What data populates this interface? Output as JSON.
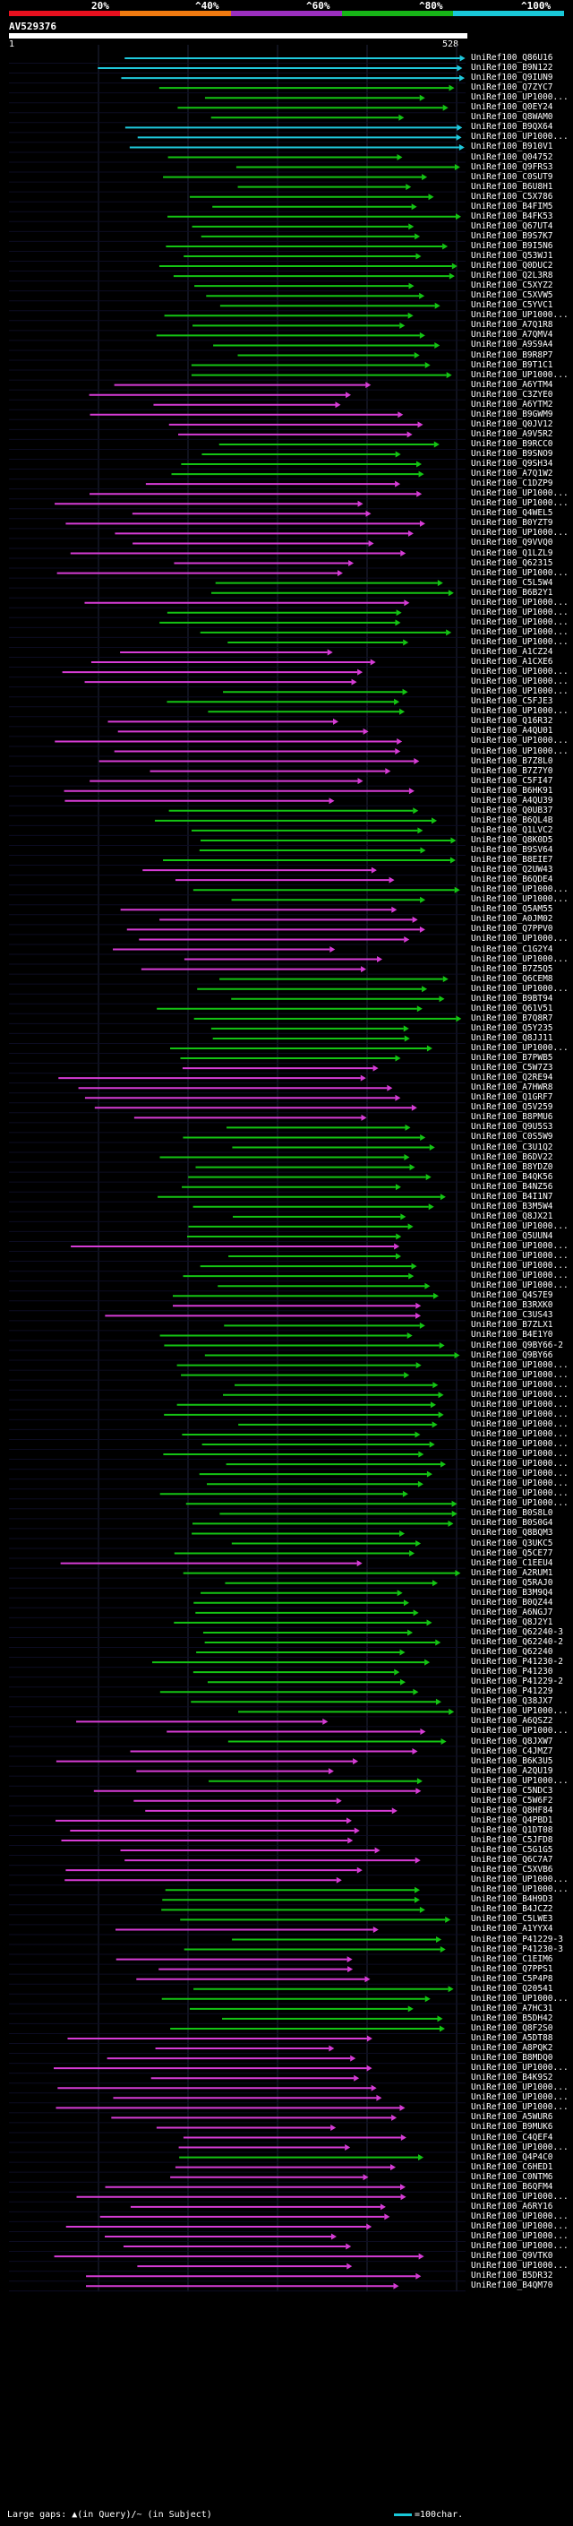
{
  "scale": {
    "labels": [
      "20%",
      "^40%",
      "^60%",
      "^80%",
      "^100%"
    ],
    "colors": [
      "#e8101e",
      "#f07a10",
      "#9b2fbf",
      "#17b517",
      "#19c8d8"
    ]
  },
  "query": {
    "id": "AV529376",
    "start": "1",
    "end": "528"
  },
  "legend": {
    "text": "Large gaps: ▲(in Query)/~ (in Subject)",
    "scale": "=100char."
  },
  "hits": [
    {
      "label": "UniRef100_Q86U16",
      "color": "cyan"
    },
    {
      "label": "UniRef100_B9N122",
      "color": "cyan"
    },
    {
      "label": "UniRef100_Q9IUN9",
      "color": "cyan"
    },
    {
      "label": "UniRef100_Q7ZYC7",
      "color": "green"
    },
    {
      "label": "UniRef100_UP1000...",
      "color": "green"
    },
    {
      "label": "UniRef100_Q0EY24",
      "color": "green"
    },
    {
      "label": "UniRef100_Q8WAM0",
      "color": "green"
    },
    {
      "label": "UniRef100_B9QX64",
      "color": "cyan"
    },
    {
      "label": "UniRef100_UP1000...",
      "color": "cyan"
    },
    {
      "label": "UniRef100_B910V1",
      "color": "cyan"
    },
    {
      "label": "UniRef100_Q04752",
      "color": "green"
    },
    {
      "label": "UniRef100_Q9FRS3",
      "color": "green"
    },
    {
      "label": "UniRef100_C0SUT9",
      "color": "green"
    },
    {
      "label": "UniRef100_B6U8H1",
      "color": "green"
    },
    {
      "label": "UniRef100_C5X786",
      "color": "green"
    },
    {
      "label": "UniRef100_B4FIM5",
      "color": "green"
    },
    {
      "label": "UniRef100_B4FK53",
      "color": "green"
    },
    {
      "label": "UniRef100_Q67UT4",
      "color": "green"
    },
    {
      "label": "UniRef100_B9S7K7",
      "color": "green"
    },
    {
      "label": "UniRef100_B9I5N6",
      "color": "green"
    },
    {
      "label": "UniRef100_Q53WJ1",
      "color": "green"
    },
    {
      "label": "UniRef100_Q0DUC2",
      "color": "green"
    },
    {
      "label": "UniRef100_Q2L3R8",
      "color": "green"
    },
    {
      "label": "UniRef100_C5XYZ2",
      "color": "green"
    },
    {
      "label": "UniRef100_C5XVW5",
      "color": "green"
    },
    {
      "label": "UniRef100_C5YVC1",
      "color": "green"
    },
    {
      "label": "UniRef100_UP1000...",
      "color": "green"
    },
    {
      "label": "UniRef100_A7Q1R8",
      "color": "green"
    },
    {
      "label": "UniRef100_A7QMV4",
      "color": "green"
    },
    {
      "label": "UniRef100_A9S9A4",
      "color": "green"
    },
    {
      "label": "UniRef100_B9R8P7",
      "color": "green"
    },
    {
      "label": "UniRef100_B9T1C1",
      "color": "green"
    },
    {
      "label": "UniRef100_UP1000...",
      "color": "green"
    },
    {
      "label": "UniRef100_A6YTM4",
      "color": "magenta"
    },
    {
      "label": "UniRef100_C3ZYE0",
      "color": "magenta"
    },
    {
      "label": "UniRef100_A6YTM2",
      "color": "magenta"
    },
    {
      "label": "UniRef100_B9GWM9",
      "color": "magenta"
    },
    {
      "label": "UniRef100_Q0JV12",
      "color": "magenta"
    },
    {
      "label": "UniRef100_A9V5R2",
      "color": "magenta"
    },
    {
      "label": "UniRef100_B9RCC0",
      "color": "green"
    },
    {
      "label": "UniRef100_B9SNO9",
      "color": "green"
    },
    {
      "label": "UniRef100_Q9SH34",
      "color": "green"
    },
    {
      "label": "UniRef100_A7Q1W2",
      "color": "green"
    },
    {
      "label": "UniRef100_C1DZP9",
      "color": "magenta"
    },
    {
      "label": "UniRef100_UP1000...",
      "color": "magenta"
    },
    {
      "label": "UniRef100_UP1000...",
      "color": "magenta"
    },
    {
      "label": "UniRef100_Q4WEL5",
      "color": "magenta"
    },
    {
      "label": "UniRef100_B0YZT9",
      "color": "magenta"
    },
    {
      "label": "UniRef100_UP1000...",
      "color": "magenta"
    },
    {
      "label": "UniRef100_Q9VVQ0",
      "color": "magenta"
    },
    {
      "label": "UniRef100_Q1LZL9",
      "color": "magenta"
    },
    {
      "label": "UniRef100_Q62315",
      "color": "magenta"
    },
    {
      "label": "UniRef100_UP1000...",
      "color": "magenta"
    },
    {
      "label": "UniRef100_C5L5W4",
      "color": "green"
    },
    {
      "label": "UniRef100_B6B2Y1",
      "color": "green"
    },
    {
      "label": "UniRef100_UP1000...",
      "color": "magenta"
    },
    {
      "label": "UniRef100_UP1000...",
      "color": "green"
    },
    {
      "label": "UniRef100_UP1000...",
      "color": "green"
    },
    {
      "label": "UniRef100_UP1000...",
      "color": "green"
    },
    {
      "label": "UniRef100_UP1000...",
      "color": "green"
    },
    {
      "label": "UniRef100_A1CZ24",
      "color": "magenta"
    },
    {
      "label": "UniRef100_A1CXE6",
      "color": "magenta"
    },
    {
      "label": "UniRef100_UP1000...",
      "color": "magenta"
    },
    {
      "label": "UniRef100_UP1000...",
      "color": "magenta"
    },
    {
      "label": "UniRef100_UP1000...",
      "color": "green"
    },
    {
      "label": "UniRef100_C5FJE3",
      "color": "green"
    },
    {
      "label": "UniRef100_UP1000...",
      "color": "green"
    },
    {
      "label": "UniRef100_Q16R32",
      "color": "magenta"
    },
    {
      "label": "UniRef100_A4QU01",
      "color": "magenta"
    },
    {
      "label": "UniRef100_UP1000...",
      "color": "magenta"
    },
    {
      "label": "UniRef100_UP1000...",
      "color": "magenta"
    },
    {
      "label": "UniRef100_B7Z8L0",
      "color": "magenta"
    },
    {
      "label": "UniRef100_B7Z7Y0",
      "color": "magenta"
    },
    {
      "label": "UniRef100_C5FI47",
      "color": "magenta"
    },
    {
      "label": "UniRef100_B6HK91",
      "color": "magenta"
    },
    {
      "label": "UniRef100_A4QU39",
      "color": "magenta"
    },
    {
      "label": "UniRef100_Q0UB37",
      "color": "green"
    },
    {
      "label": "UniRef100_B6QL4B",
      "color": "green"
    },
    {
      "label": "UniRef100_Q1LVC2",
      "color": "green"
    },
    {
      "label": "UniRef100_Q8K0D5",
      "color": "green"
    },
    {
      "label": "UniRef100_B9SV64",
      "color": "green"
    },
    {
      "label": "UniRef100_B8EIE7",
      "color": "green"
    },
    {
      "label": "UniRef100_Q2UW43",
      "color": "magenta"
    },
    {
      "label": "UniRef100_B6QDE4",
      "color": "magenta"
    },
    {
      "label": "UniRef100_UP1000...",
      "color": "green"
    },
    {
      "label": "UniRef100_UP1000...",
      "color": "green"
    },
    {
      "label": "UniRef100_Q5AM55",
      "color": "magenta"
    },
    {
      "label": "UniRef100_A0JM02",
      "color": "magenta"
    },
    {
      "label": "UniRef100_Q7PPV0",
      "color": "magenta"
    },
    {
      "label": "UniRef100_UP1000...",
      "color": "magenta"
    },
    {
      "label": "UniRef100_C1G2Y4",
      "color": "magenta"
    },
    {
      "label": "UniRef100_UP1000...",
      "color": "magenta"
    },
    {
      "label": "UniRef100_B7Z5Q5",
      "color": "magenta"
    },
    {
      "label": "UniRef100_Q6CEM8",
      "color": "green"
    },
    {
      "label": "UniRef100_UP1000...",
      "color": "green"
    },
    {
      "label": "UniRef100_B9BT94",
      "color": "green"
    },
    {
      "label": "UniRef100_Q61V51",
      "color": "green"
    },
    {
      "label": "UniRef100_B7Q8R7",
      "color": "green"
    },
    {
      "label": "UniRef100_Q5Y235",
      "color": "green"
    },
    {
      "label": "UniRef100_Q8JJ11",
      "color": "green"
    },
    {
      "label": "UniRef100_UP1000...",
      "color": "green"
    },
    {
      "label": "UniRef100_B7PWB5",
      "color": "green"
    },
    {
      "label": "UniRef100_C5W7Z3",
      "color": "magenta"
    },
    {
      "label": "UniRef100_Q2RE94",
      "color": "magenta"
    },
    {
      "label": "UniRef100_A7HWR8",
      "color": "magenta"
    },
    {
      "label": "UniRef100_Q1GRF7",
      "color": "magenta"
    },
    {
      "label": "UniRef100_Q5V259",
      "color": "magenta"
    },
    {
      "label": "UniRef100_B8PMU6",
      "color": "magenta"
    },
    {
      "label": "UniRef100_Q9U5S3",
      "color": "green"
    },
    {
      "label": "UniRef100_C0S5W9",
      "color": "green"
    },
    {
      "label": "UniRef100_C3U1Q2",
      "color": "green"
    },
    {
      "label": "UniRef100_B6DV22",
      "color": "green"
    },
    {
      "label": "UniRef100_B8YDZ0",
      "color": "green"
    },
    {
      "label": "UniRef100_B4QK56",
      "color": "green"
    },
    {
      "label": "UniRef100_B4NZ56",
      "color": "green"
    },
    {
      "label": "UniRef100_B4I1N7",
      "color": "green"
    },
    {
      "label": "UniRef100_B3M5W4",
      "color": "green"
    },
    {
      "label": "UniRef100_Q8JX21",
      "color": "green"
    },
    {
      "label": "UniRef100_UP1000...",
      "color": "green"
    },
    {
      "label": "UniRef100_Q5UUN4",
      "color": "green"
    },
    {
      "label": "UniRef100_UP1000...",
      "color": "magenta"
    },
    {
      "label": "UniRef100_UP1000...",
      "color": "green"
    },
    {
      "label": "UniRef100_UP1000...",
      "color": "green"
    },
    {
      "label": "UniRef100_UP1000...",
      "color": "green"
    },
    {
      "label": "UniRef100_UP1000...",
      "color": "green"
    },
    {
      "label": "UniRef100_Q4S7E9",
      "color": "green"
    },
    {
      "label": "UniRef100_B3RXK0",
      "color": "magenta"
    },
    {
      "label": "UniRef100_C3US43",
      "color": "magenta"
    },
    {
      "label": "UniRef100_B7ZLX1",
      "color": "green"
    },
    {
      "label": "UniRef100_B4E1Y0",
      "color": "green"
    },
    {
      "label": "UniRef100_Q9BY66-2",
      "color": "green"
    },
    {
      "label": "UniRef100_Q9BY66",
      "color": "green"
    },
    {
      "label": "UniRef100_UP1000...",
      "color": "green"
    },
    {
      "label": "UniRef100_UP1000...",
      "color": "green"
    },
    {
      "label": "UniRef100_UP1000...",
      "color": "green"
    },
    {
      "label": "UniRef100_UP1000...",
      "color": "green"
    },
    {
      "label": "UniRef100_UP1000...",
      "color": "green"
    },
    {
      "label": "UniRef100_UP1000...",
      "color": "green"
    },
    {
      "label": "UniRef100_UP1000...",
      "color": "green"
    },
    {
      "label": "UniRef100_UP1000...",
      "color": "green"
    },
    {
      "label": "UniRef100_UP1000...",
      "color": "green"
    },
    {
      "label": "UniRef100_UP1000...",
      "color": "green"
    },
    {
      "label": "UniRef100_UP1000...",
      "color": "green"
    },
    {
      "label": "UniRef100_UP1000...",
      "color": "green"
    },
    {
      "label": "UniRef100_UP1000...",
      "color": "green"
    },
    {
      "label": "UniRef100_UP1000...",
      "color": "green"
    },
    {
      "label": "UniRef100_UP1000...",
      "color": "green"
    },
    {
      "label": "UniRef100_B0S8L0",
      "color": "green"
    },
    {
      "label": "UniRef100_B0S0G4",
      "color": "green"
    },
    {
      "label": "UniRef100_Q8BQM3",
      "color": "green"
    },
    {
      "label": "UniRef100_Q3UKC5",
      "color": "green"
    },
    {
      "label": "UniRef100_Q5CE77",
      "color": "green"
    },
    {
      "label": "UniRef100_C1EEU4",
      "color": "magenta"
    },
    {
      "label": "UniRef100_A2RUM1",
      "color": "green"
    },
    {
      "label": "UniRef100_Q5RAJ0",
      "color": "green"
    },
    {
      "label": "UniRef100_B3M9Q4",
      "color": "green"
    },
    {
      "label": "UniRef100_B0QZ44",
      "color": "green"
    },
    {
      "label": "UniRef100_A6NGJ7",
      "color": "green"
    },
    {
      "label": "UniRef100_Q8J2Y1",
      "color": "green"
    },
    {
      "label": "UniRef100_Q62240-3",
      "color": "green"
    },
    {
      "label": "UniRef100_Q62240-2",
      "color": "green"
    },
    {
      "label": "UniRef100_Q62240",
      "color": "green"
    },
    {
      "label": "UniRef100_P41230-2",
      "color": "green"
    },
    {
      "label": "UniRef100_P41230",
      "color": "green"
    },
    {
      "label": "UniRef100_P41229-2",
      "color": "green"
    },
    {
      "label": "UniRef100_P41229",
      "color": "green"
    },
    {
      "label": "UniRef100_Q38JX7",
      "color": "green"
    },
    {
      "label": "UniRef100_UP1000...",
      "color": "green"
    },
    {
      "label": "UniRef100_A6QSZ2",
      "color": "magenta"
    },
    {
      "label": "UniRef100_UP1000...",
      "color": "magenta"
    },
    {
      "label": "UniRef100_Q8JXW7",
      "color": "green"
    },
    {
      "label": "UniRef100_C4JMZ7",
      "color": "magenta"
    },
    {
      "label": "UniRef100_B6K3U5",
      "color": "magenta"
    },
    {
      "label": "UniRef100_A2QU19",
      "color": "magenta"
    },
    {
      "label": "UniRef100_UP1000...",
      "color": "green"
    },
    {
      "label": "UniRef100_C5NDC3",
      "color": "magenta"
    },
    {
      "label": "UniRef100_C5W6F2",
      "color": "magenta"
    },
    {
      "label": "UniRef100_Q8HF84",
      "color": "magenta"
    },
    {
      "label": "UniRef100_Q4PBD1",
      "color": "magenta"
    },
    {
      "label": "UniRef100_Q1DT08",
      "color": "magenta"
    },
    {
      "label": "UniRef100_C5JFD8",
      "color": "magenta"
    },
    {
      "label": "UniRef100_C5G1G5",
      "color": "magenta"
    },
    {
      "label": "UniRef100_Q6C7A7",
      "color": "magenta"
    },
    {
      "label": "UniRef100_C5XVB6",
      "color": "magenta"
    },
    {
      "label": "UniRef100_UP1000...",
      "color": "magenta"
    },
    {
      "label": "UniRef100_UP1000...",
      "color": "green"
    },
    {
      "label": "UniRef100_B4H9D3",
      "color": "green"
    },
    {
      "label": "UniRef100_B4JCZ2",
      "color": "green"
    },
    {
      "label": "UniRef100_C5LWE3",
      "color": "green"
    },
    {
      "label": "UniRef100_A1YYX4",
      "color": "magenta"
    },
    {
      "label": "UniRef100_P41229-3",
      "color": "green"
    },
    {
      "label": "UniRef100_P41230-3",
      "color": "green"
    },
    {
      "label": "UniRef100_C1EIM6",
      "color": "magenta"
    },
    {
      "label": "UniRef100_Q7PPS1",
      "color": "magenta"
    },
    {
      "label": "UniRef100_C5P4P8",
      "color": "magenta"
    },
    {
      "label": "UniRef100_Q20541",
      "color": "green"
    },
    {
      "label": "UniRef100_UP1000...",
      "color": "green"
    },
    {
      "label": "UniRef100_A7HC31",
      "color": "green"
    },
    {
      "label": "UniRef100_B5DH42",
      "color": "green"
    },
    {
      "label": "UniRef100_Q8F2S0",
      "color": "green"
    },
    {
      "label": "UniRef100_A5DT88",
      "color": "magenta"
    },
    {
      "label": "UniRef100_A8PQK2",
      "color": "magenta"
    },
    {
      "label": "UniRef100_B8MDQ0",
      "color": "magenta"
    },
    {
      "label": "UniRef100_UP1000...",
      "color": "magenta"
    },
    {
      "label": "UniRef100_B4K9S2",
      "color": "magenta"
    },
    {
      "label": "UniRef100_UP1000...",
      "color": "magenta"
    },
    {
      "label": "UniRef100_UP1000...",
      "color": "magenta"
    },
    {
      "label": "UniRef100_UP1000...",
      "color": "magenta"
    },
    {
      "label": "UniRef100_A5WUR6",
      "color": "magenta"
    },
    {
      "label": "UniRef100_B9MUK6",
      "color": "magenta"
    },
    {
      "label": "UniRef100_C4QEF4",
      "color": "magenta"
    },
    {
      "label": "UniRef100_UP1000...",
      "color": "magenta"
    },
    {
      "label": "UniRef100_Q4P4C0",
      "color": "green"
    },
    {
      "label": "UniRef100_C6HED1",
      "color": "magenta"
    },
    {
      "label": "UniRef100_C0NTM6",
      "color": "magenta"
    },
    {
      "label": "UniRef100_B6QFM4",
      "color": "magenta"
    },
    {
      "label": "UniRef100_UP1000...",
      "color": "magenta"
    },
    {
      "label": "UniRef100_A6RY16",
      "color": "magenta"
    },
    {
      "label": "UniRef100_UP1000...",
      "color": "magenta"
    },
    {
      "label": "UniRef100_UP1000...",
      "color": "magenta"
    },
    {
      "label": "UniRef100_UP1000...",
      "color": "magenta"
    },
    {
      "label": "UniRef100_UP1000...",
      "color": "magenta"
    },
    {
      "label": "UniRef100_Q9VTK0",
      "color": "magenta"
    },
    {
      "label": "UniRef100_UP1000...",
      "color": "magenta"
    },
    {
      "label": "UniRef100_B5DR32",
      "color": "magenta"
    },
    {
      "label": "UniRef100_B4QM70",
      "color": "magenta"
    }
  ]
}
